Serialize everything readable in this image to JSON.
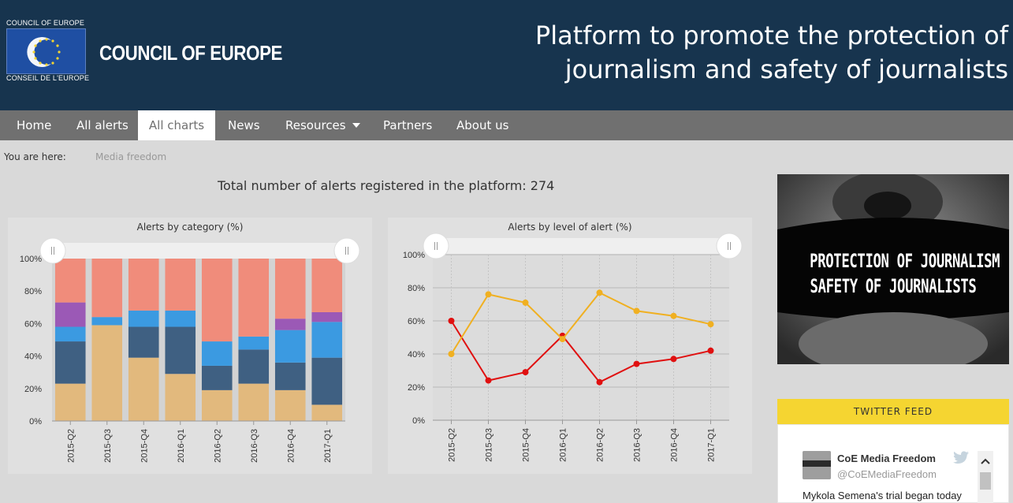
{
  "header": {
    "logo_small_top": "COUNCIL OF EUROPE",
    "logo_small_bottom": "CONSEIL DE L'EUROPE",
    "logo_text": "COUNCIL OF EUROPE",
    "title_line1": "Platform to promote the protection of",
    "title_line2": "journalism and safety of journalists",
    "bg_color": "#17344e"
  },
  "nav": {
    "items": [
      {
        "label": "Home"
      },
      {
        "label": "All alerts"
      },
      {
        "label": "All charts",
        "active": true
      },
      {
        "label": "News"
      },
      {
        "label": "Resources",
        "dropdown": true
      },
      {
        "label": "Partners"
      },
      {
        "label": "About us"
      }
    ]
  },
  "breadcrumb": {
    "label": "You are here:",
    "current": "Media freedom"
  },
  "summary": {
    "total_text": "Total number of alerts registered in the platform: 274"
  },
  "chart_data": [
    {
      "type": "bar",
      "stacked": true,
      "title": "Alerts by category (%)",
      "categories": [
        "2015-Q2",
        "2015-Q3",
        "2015-Q4",
        "2016-Q1",
        "2016-Q2",
        "2016-Q3",
        "2016-Q4",
        "2017-Q1"
      ],
      "ylim": [
        0,
        100
      ],
      "yticks": [
        "0%",
        "20%",
        "40%",
        "60%",
        "80%",
        "100%"
      ],
      "series": [
        {
          "color": "#e2b97d",
          "values": [
            23,
            59,
            39,
            29,
            19,
            23,
            19,
            10
          ]
        },
        {
          "color": "#3f6082",
          "values": [
            26,
            0,
            19,
            29,
            15,
            21,
            17,
            29
          ]
        },
        {
          "color": "#3b9ae1",
          "values": [
            9,
            5,
            10,
            10,
            15,
            8,
            20,
            22
          ]
        },
        {
          "color": "#9b59b6",
          "values": [
            15,
            0,
            0,
            0,
            0,
            0,
            7,
            6
          ]
        },
        {
          "color": "#f08c7b",
          "values": [
            27,
            36,
            32,
            32,
            51,
            48,
            37,
            33
          ]
        }
      ]
    },
    {
      "type": "line",
      "title": "Alerts by level of alert (%)",
      "categories": [
        "2015-Q2",
        "2015-Q3",
        "2015-Q4",
        "2016-Q1",
        "2016-Q2",
        "2016-Q3",
        "2016-Q4",
        "2017-Q1"
      ],
      "ylim": [
        0,
        100
      ],
      "yticks": [
        "0%",
        "20%",
        "40%",
        "60%",
        "80%",
        "100%"
      ],
      "series": [
        {
          "color": "#e01010",
          "values": [
            60,
            24,
            29,
            51,
            23,
            34,
            37,
            42
          ]
        },
        {
          "color": "#f0b021",
          "values": [
            40,
            76,
            71,
            49,
            77,
            66,
            63,
            58
          ]
        }
      ]
    }
  ],
  "side_banner": {
    "line1": "PROTECTION OF JOURNALISM",
    "line2": "SAFETY OF JOURNALISTS"
  },
  "twitter": {
    "heading": "TWITTER FEED",
    "name": "CoE Media Freedom",
    "handle": "@CoEMediaFreedom",
    "text": "Mykola Semena's trial began today"
  }
}
